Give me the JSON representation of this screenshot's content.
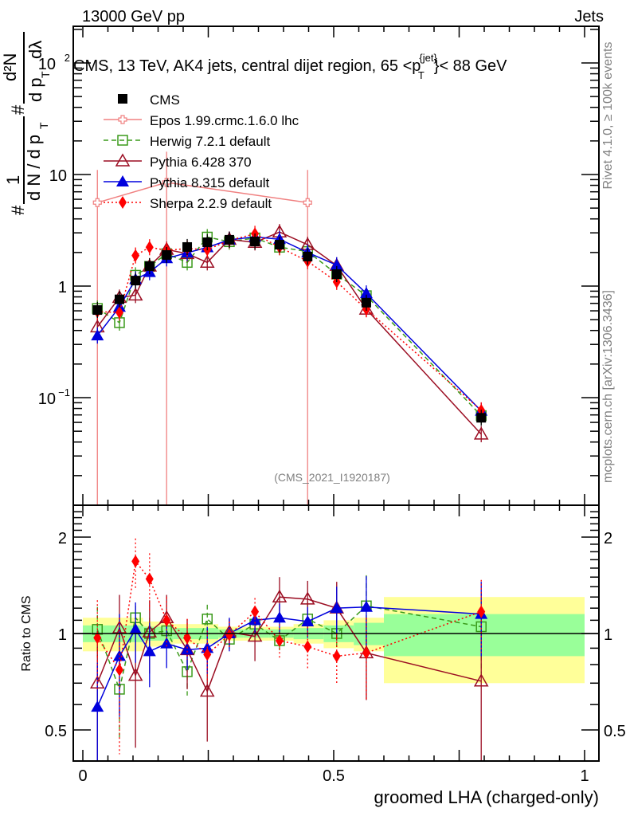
{
  "header": {
    "left": "13000 GeV pp",
    "right": "Jets"
  },
  "side_labels": {
    "rivet": "Rivet 4.1.0, ≥ 100k events",
    "mcplots": "mcplots.cern.ch [arXiv:1306.3436]"
  },
  "analysis_id": "(CMS_2021_I1920187)",
  "chart_data": [
    {
      "type": "scatter",
      "panel": "main",
      "title": "CMS, 13 TeV, AK4 jets, central dijet region, 65 <p_T^{jet}< 88 GeV",
      "title_parts": {
        "before": "CMS, 13 TeV, AK4 jets, central dijet region, 65 <p",
        "sup": "{jet}",
        "sub": "T",
        "after": "}< 88 GeV"
      },
      "ylabel": "1/(dN/dp_T) d²N/(dp_T dλ)",
      "ylabel_parts": {
        "num": "1",
        "den": "d N / d p",
        "den_sub": "T",
        "frac2_num": "d²N",
        "frac2_den": "d p",
        "frac2_den_sub": "T",
        "frac2_tail": "dλ",
        "hash": "#"
      },
      "yscale": "log",
      "ylim": [
        0.011,
        214
      ],
      "xlim": [
        -0.02,
        1.03
      ],
      "ytick_labels": [
        {
          "value": 0.1,
          "text": "10",
          "sup": "−1"
        },
        {
          "value": 1,
          "text": "1",
          "sup": ""
        },
        {
          "value": 10,
          "text": "10",
          "sup": ""
        },
        {
          "value": 100,
          "text": "10",
          "sup": "2"
        }
      ],
      "legend_position": "top-left",
      "x": [
        0.029,
        0.073,
        0.105,
        0.133,
        0.167,
        0.208,
        0.248,
        0.292,
        0.343,
        0.392,
        0.448,
        0.506,
        0.565,
        0.794
      ],
      "series": [
        {
          "name": "CMS",
          "color": "#000000",
          "marker": "square-filled",
          "line": "none",
          "values": [
            0.61,
            0.76,
            1.12,
            1.51,
            1.9,
            2.24,
            2.47,
            2.6,
            2.51,
            2.35,
            1.84,
            1.28,
            0.71,
            0.066
          ]
        },
        {
          "name": "Epos 1.99.crmc.1.6.0 lhc",
          "color": "#f08080",
          "marker": "cross-open",
          "line": "solid",
          "x": [
            0.029,
            0.167,
            0.448
          ],
          "values": [
            5.6,
            8.5,
            5.6
          ],
          "err_up": [
            11.0,
            16.0,
            11.0
          ],
          "err_down": [
            0.011,
            0.011,
            0.011
          ]
        },
        {
          "name": "Herwig 7.2.1 default",
          "color": "#3a9a1a",
          "marker": "square-open",
          "line": "dashed",
          "values": [
            0.63,
            0.47,
            1.25,
            1.5,
            1.95,
            1.63,
            2.75,
            2.5,
            2.7,
            2.23,
            2.04,
            1.28,
            0.82,
            0.069
          ]
        },
        {
          "name": "Pythia 6.428 370",
          "color": "#9b0d22",
          "marker": "triangle-open",
          "line": "solid",
          "values": [
            0.43,
            0.79,
            0.83,
            1.51,
            2.13,
            1.95,
            1.63,
            2.62,
            2.46,
            3.05,
            2.35,
            1.53,
            0.62,
            0.047
          ]
        },
        {
          "name": "Pythia 8.315 default",
          "color": "#0000dd",
          "marker": "triangle-filled",
          "line": "solid",
          "values": [
            0.36,
            0.65,
            1.15,
            1.33,
            1.77,
            1.99,
            2.22,
            2.6,
            2.76,
            2.63,
            2.0,
            1.54,
            0.86,
            0.076
          ]
        },
        {
          "name": "Sherpa 2.2.9 default",
          "color": "#ff0000",
          "marker": "diamond-filled",
          "line": "dotted",
          "values": [
            0.59,
            0.58,
            1.88,
            2.23,
            2.09,
            2.17,
            2.12,
            2.57,
            2.94,
            2.23,
            1.67,
            1.09,
            0.62,
            0.077
          ]
        }
      ]
    },
    {
      "type": "scatter",
      "panel": "ratio",
      "ylabel": "Ratio to CMS",
      "xlabel": "groomed LHA (charged-only)",
      "yscale": "log",
      "ylim": [
        0.4,
        2.5
      ],
      "xlim": [
        -0.02,
        1.03
      ],
      "xtick_labels": [
        {
          "value": 0,
          "text": "0"
        },
        {
          "value": 0.5,
          "text": "0.5"
        },
        {
          "value": 1,
          "text": "1"
        }
      ],
      "ytick_labels": [
        {
          "value": 0.5,
          "text": "0.5"
        },
        {
          "value": 1,
          "text": "1"
        },
        {
          "value": 2,
          "text": "2"
        }
      ],
      "reference_line": 1,
      "bands": {
        "bin_edges": [
          0.0,
          0.05,
          0.09,
          0.12,
          0.15,
          0.18,
          0.24,
          0.27,
          0.32,
          0.37,
          0.42,
          0.48,
          0.54,
          0.6,
          1.0
        ],
        "stat_color": "#99ff99",
        "total_color": "#ffff99",
        "stat_half": [
          0.06,
          0.06,
          0.06,
          0.05,
          0.05,
          0.04,
          0.04,
          0.03,
          0.03,
          0.03,
          0.04,
          0.06,
          0.08,
          0.15
        ],
        "total_half": [
          0.12,
          0.12,
          0.12,
          0.09,
          0.09,
          0.07,
          0.07,
          0.05,
          0.05,
          0.05,
          0.07,
          0.1,
          0.12,
          0.3
        ]
      },
      "x": [
        0.029,
        0.073,
        0.105,
        0.133,
        0.167,
        0.208,
        0.248,
        0.292,
        0.343,
        0.392,
        0.448,
        0.506,
        0.565,
        0.794
      ],
      "series": [
        {
          "name": "Herwig 7.2.1 default",
          "color": "#3a9a1a",
          "marker": "square-open",
          "line": "dashed",
          "values": [
            1.03,
            0.67,
            1.12,
            1.0,
            1.02,
            0.76,
            1.11,
            0.96,
            1.07,
            0.95,
            1.11,
            1.0,
            1.22,
            1.05
          ],
          "err": [
            0.18,
            0.2,
            0.1,
            0.12,
            0.12,
            0.12,
            0.12,
            0.08,
            0.08,
            0.08,
            0.14,
            0.18,
            0.3,
            0.3
          ]
        },
        {
          "name": "Pythia 6.428 370",
          "color": "#9b0d22",
          "marker": "triangle-open",
          "line": "solid",
          "values": [
            0.7,
            1.04,
            0.74,
            1.01,
            1.12,
            0.89,
            0.66,
            1.01,
            0.98,
            1.3,
            1.28,
            1.2,
            0.87,
            0.71
          ],
          "err": [
            0.32,
            0.28,
            0.3,
            0.26,
            0.2,
            0.22,
            0.2,
            0.1,
            0.16,
            0.2,
            0.18,
            0.25,
            0.25,
            0.4
          ]
        },
        {
          "name": "Pythia 8.315 default",
          "color": "#0000dd",
          "marker": "triangle-filled",
          "line": "solid",
          "values": [
            0.59,
            0.85,
            1.03,
            0.88,
            0.93,
            0.89,
            0.9,
            1.0,
            1.1,
            1.12,
            1.09,
            1.2,
            1.21,
            1.15
          ],
          "err": [
            0.22,
            0.3,
            0.22,
            0.2,
            0.15,
            0.12,
            0.15,
            0.12,
            0.1,
            0.12,
            0.12,
            0.2,
            0.3,
            0.3
          ]
        },
        {
          "name": "Sherpa 2.2.9 default",
          "color": "#ff0000",
          "marker": "diamond-filled",
          "line": "dotted",
          "values": [
            0.97,
            0.77,
            1.68,
            1.48,
            1.1,
            0.97,
            0.86,
            0.99,
            1.17,
            0.95,
            0.91,
            0.85,
            0.87,
            1.17
          ],
          "err": [
            0.3,
            0.35,
            0.3,
            0.3,
            0.2,
            0.14,
            0.16,
            0.1,
            0.12,
            0.12,
            0.14,
            0.15,
            0.25,
            0.3
          ]
        }
      ]
    }
  ]
}
